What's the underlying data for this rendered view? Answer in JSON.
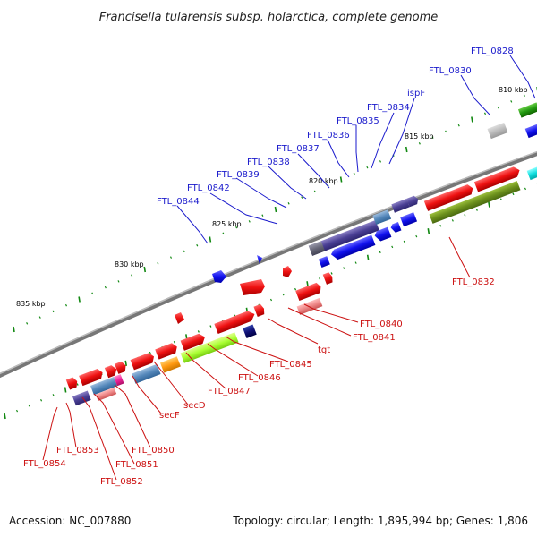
{
  "title": "Francisella tularensis subsp. holarctica, complete genome",
  "footer": {
    "accession": "Accession: NC_007880",
    "summary": "Topology: circular; Length: 1,895,994 bp; Genes: 1,806"
  },
  "kbp_ticks": [
    "810 kbp",
    "815 kbp",
    "820 kbp",
    "825 kbp",
    "830 kbp",
    "835 kbp"
  ],
  "labels_top": [
    "FTL_0828",
    "FTL_0830",
    "ispF",
    "FTL_0834",
    "FTL_0835",
    "FTL_0836",
    "FTL_0837",
    "FTL_0838",
    "FTL_0839",
    "FTL_0842",
    "FTL_0844"
  ],
  "labels_bottom": [
    "FTL_0832",
    "FTL_0840",
    "FTL_0841",
    "tgt",
    "FTL_0845",
    "FTL_0846",
    "FTL_0847",
    "secD",
    "secF",
    "FTL_0850",
    "FTL_0851",
    "FTL_0852",
    "FTL_0853",
    "FTL_0854"
  ],
  "colors": {
    "forward_cds": "#ee1111",
    "reverse_cds": "#1111ee",
    "backbone": "#888888",
    "tick": "#118811",
    "label_top": "#1a1acc",
    "label_bottom": "#cc1111"
  }
}
